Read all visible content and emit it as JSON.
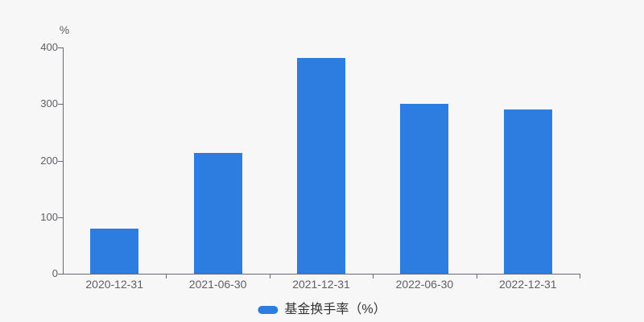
{
  "page": {
    "background_color": "#f7f7f8",
    "axis_line_color": "#666b73",
    "axis_label_color": "#5e6066",
    "legend_text_color": "#333333"
  },
  "chart_data": {
    "type": "bar",
    "title": "",
    "unit_label": "%",
    "categories": [
      "2020-12-31",
      "2021-06-30",
      "2021-12-31",
      "2022-06-30",
      "2022-12-31"
    ],
    "series": [
      {
        "name": "基金换手率（%）",
        "values": [
          80,
          213,
          381,
          300,
          291
        ],
        "color": "#2d7de0"
      }
    ],
    "ylim": [
      0,
      400
    ],
    "yticks": [
      0,
      100,
      200,
      300,
      400
    ],
    "grid": false,
    "legend_position": "bottom"
  }
}
